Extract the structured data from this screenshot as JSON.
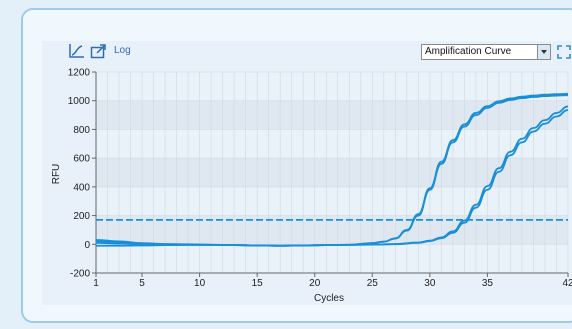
{
  "toolbar": {
    "log_label": "Log",
    "view_select": "Amplification Curve",
    "icons": [
      "chart-scale-icon",
      "export-icon",
      "expand-icon"
    ]
  },
  "colors": {
    "curve": "#1a8fd8",
    "threshold": "#1a8fd8",
    "band_dark": "#dfe8f1",
    "band_light": "#eaf2f9"
  },
  "chart_data": {
    "type": "line",
    "xlabel": "Cycles",
    "ylabel": "RFU",
    "xlim": [
      1,
      42
    ],
    "ylim": [
      -200,
      1200
    ],
    "x_ticks": [
      1,
      5,
      10,
      15,
      20,
      25,
      30,
      35,
      42
    ],
    "y_ticks": [
      -200,
      0,
      200,
      400,
      600,
      800,
      1000,
      1200
    ],
    "grid": true,
    "threshold": 170,
    "series": [
      {
        "x": [
          1,
          3,
          5,
          7,
          9,
          11,
          13,
          15,
          17,
          19,
          21,
          23,
          25,
          26,
          27,
          28,
          29,
          30,
          31,
          32,
          33,
          34,
          35,
          36,
          37,
          38,
          39,
          40,
          41,
          42
        ],
        "values": [
          20,
          15,
          5,
          0,
          -2,
          -3,
          -5,
          -8,
          -10,
          -8,
          -5,
          -3,
          8,
          18,
          40,
          95,
          200,
          380,
          560,
          710,
          820,
          900,
          950,
          985,
          1005,
          1018,
          1026,
          1032,
          1036,
          1038
        ]
      },
      {
        "x": [
          1,
          3,
          5,
          7,
          9,
          11,
          13,
          15,
          17,
          19,
          21,
          23,
          25,
          26,
          27,
          28,
          29,
          30,
          31,
          32,
          33,
          34,
          35,
          36,
          37,
          38,
          39,
          40,
          41,
          42
        ],
        "values": [
          30,
          20,
          8,
          2,
          0,
          -3,
          -5,
          -8,
          -10,
          -8,
          -5,
          -3,
          8,
          18,
          42,
          100,
          210,
          390,
          575,
          725,
          835,
          915,
          962,
          996,
          1016,
          1028,
          1036,
          1042,
          1046,
          1048
        ]
      },
      {
        "x": [
          1,
          3,
          5,
          7,
          9,
          11,
          13,
          15,
          17,
          19,
          21,
          23,
          25,
          27,
          29,
          30,
          31,
          32,
          33,
          34,
          35,
          36,
          37,
          38,
          39,
          40,
          41,
          42
        ],
        "values": [
          10,
          5,
          0,
          -2,
          -3,
          -4,
          -6,
          -8,
          -10,
          -8,
          -6,
          -4,
          -2,
          0,
          10,
          22,
          42,
          80,
          150,
          255,
          380,
          505,
          620,
          710,
          785,
          840,
          890,
          935
        ]
      },
      {
        "x": [
          1,
          3,
          5,
          7,
          9,
          11,
          13,
          15,
          17,
          19,
          21,
          23,
          25,
          27,
          29,
          30,
          31,
          32,
          33,
          34,
          35,
          36,
          37,
          38,
          39,
          40,
          41,
          42
        ],
        "values": [
          -10,
          -10,
          -8,
          -6,
          -5,
          -5,
          -6,
          -8,
          -10,
          -8,
          -6,
          -4,
          -2,
          2,
          12,
          25,
          48,
          90,
          165,
          275,
          405,
          530,
          645,
          735,
          810,
          865,
          915,
          960
        ]
      }
    ]
  }
}
